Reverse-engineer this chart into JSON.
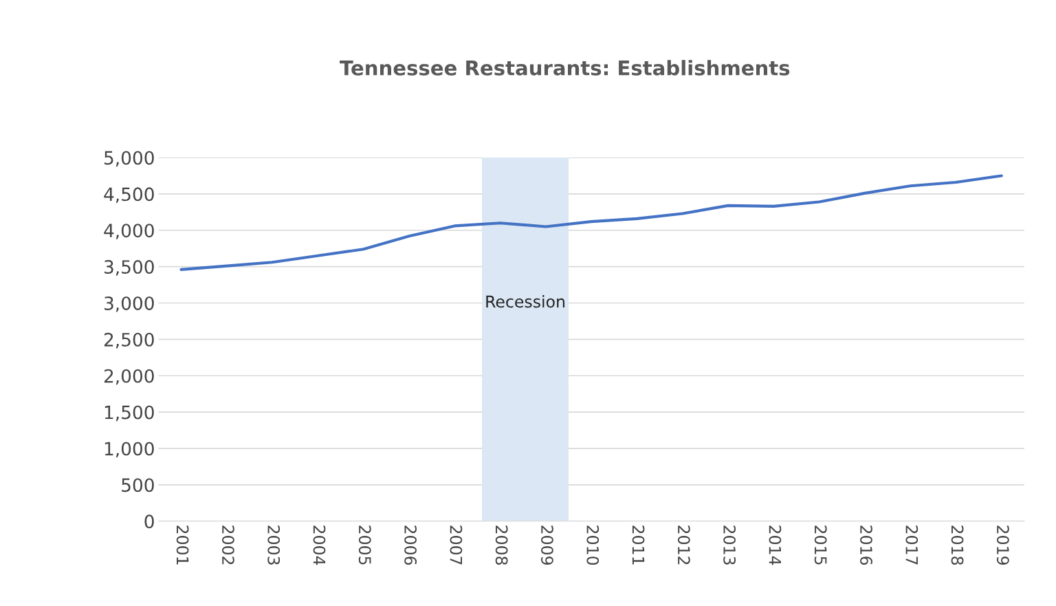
{
  "chart_data": {
    "type": "line",
    "title": "Tennessee Restaurants: Establishments",
    "x": [
      2001,
      2002,
      2003,
      2004,
      2005,
      2006,
      2007,
      2008,
      2009,
      2010,
      2011,
      2012,
      2013,
      2014,
      2015,
      2016,
      2017,
      2018,
      2019
    ],
    "series": [
      {
        "color": "#4472c4",
        "values": [
          3460,
          3510,
          3560,
          3650,
          3740,
          3920,
          4060,
          4100,
          4050,
          4120,
          4160,
          4230,
          4340,
          4330,
          4390,
          4510,
          4610,
          4660,
          4750
        ]
      }
    ],
    "xlim": [
      2000.5,
      2019.5
    ],
    "xticks": [
      2001,
      2002,
      2003,
      2004,
      2005,
      2006,
      2007,
      2008,
      2009,
      2010,
      2011,
      2012,
      2013,
      2014,
      2015,
      2016,
      2017,
      2018,
      2019
    ],
    "ylim": [
      0,
      5000
    ],
    "yticks": [
      0,
      500,
      {
        "value": 1000,
        "label": "1,000"
      },
      {
        "value": 1500,
        "label": "1,500"
      },
      {
        "value": 2000,
        "label": "2,000"
      },
      {
        "value": 2500,
        "label": "2,500"
      },
      {
        "value": 3000,
        "label": "3,000"
      },
      {
        "value": 3500,
        "label": "3,500"
      },
      {
        "value": 4000,
        "label": "4,000"
      },
      {
        "value": 4500,
        "label": "4,500"
      },
      {
        "value": 5000,
        "label": "5,000"
      }
    ],
    "bands": [
      {
        "axis": "x",
        "from": 2007.6,
        "to": 2009.5,
        "label": "Recession",
        "color": "#dbe7f4"
      }
    ],
    "grid": "y",
    "marker": "none",
    "line_style": "solid"
  }
}
